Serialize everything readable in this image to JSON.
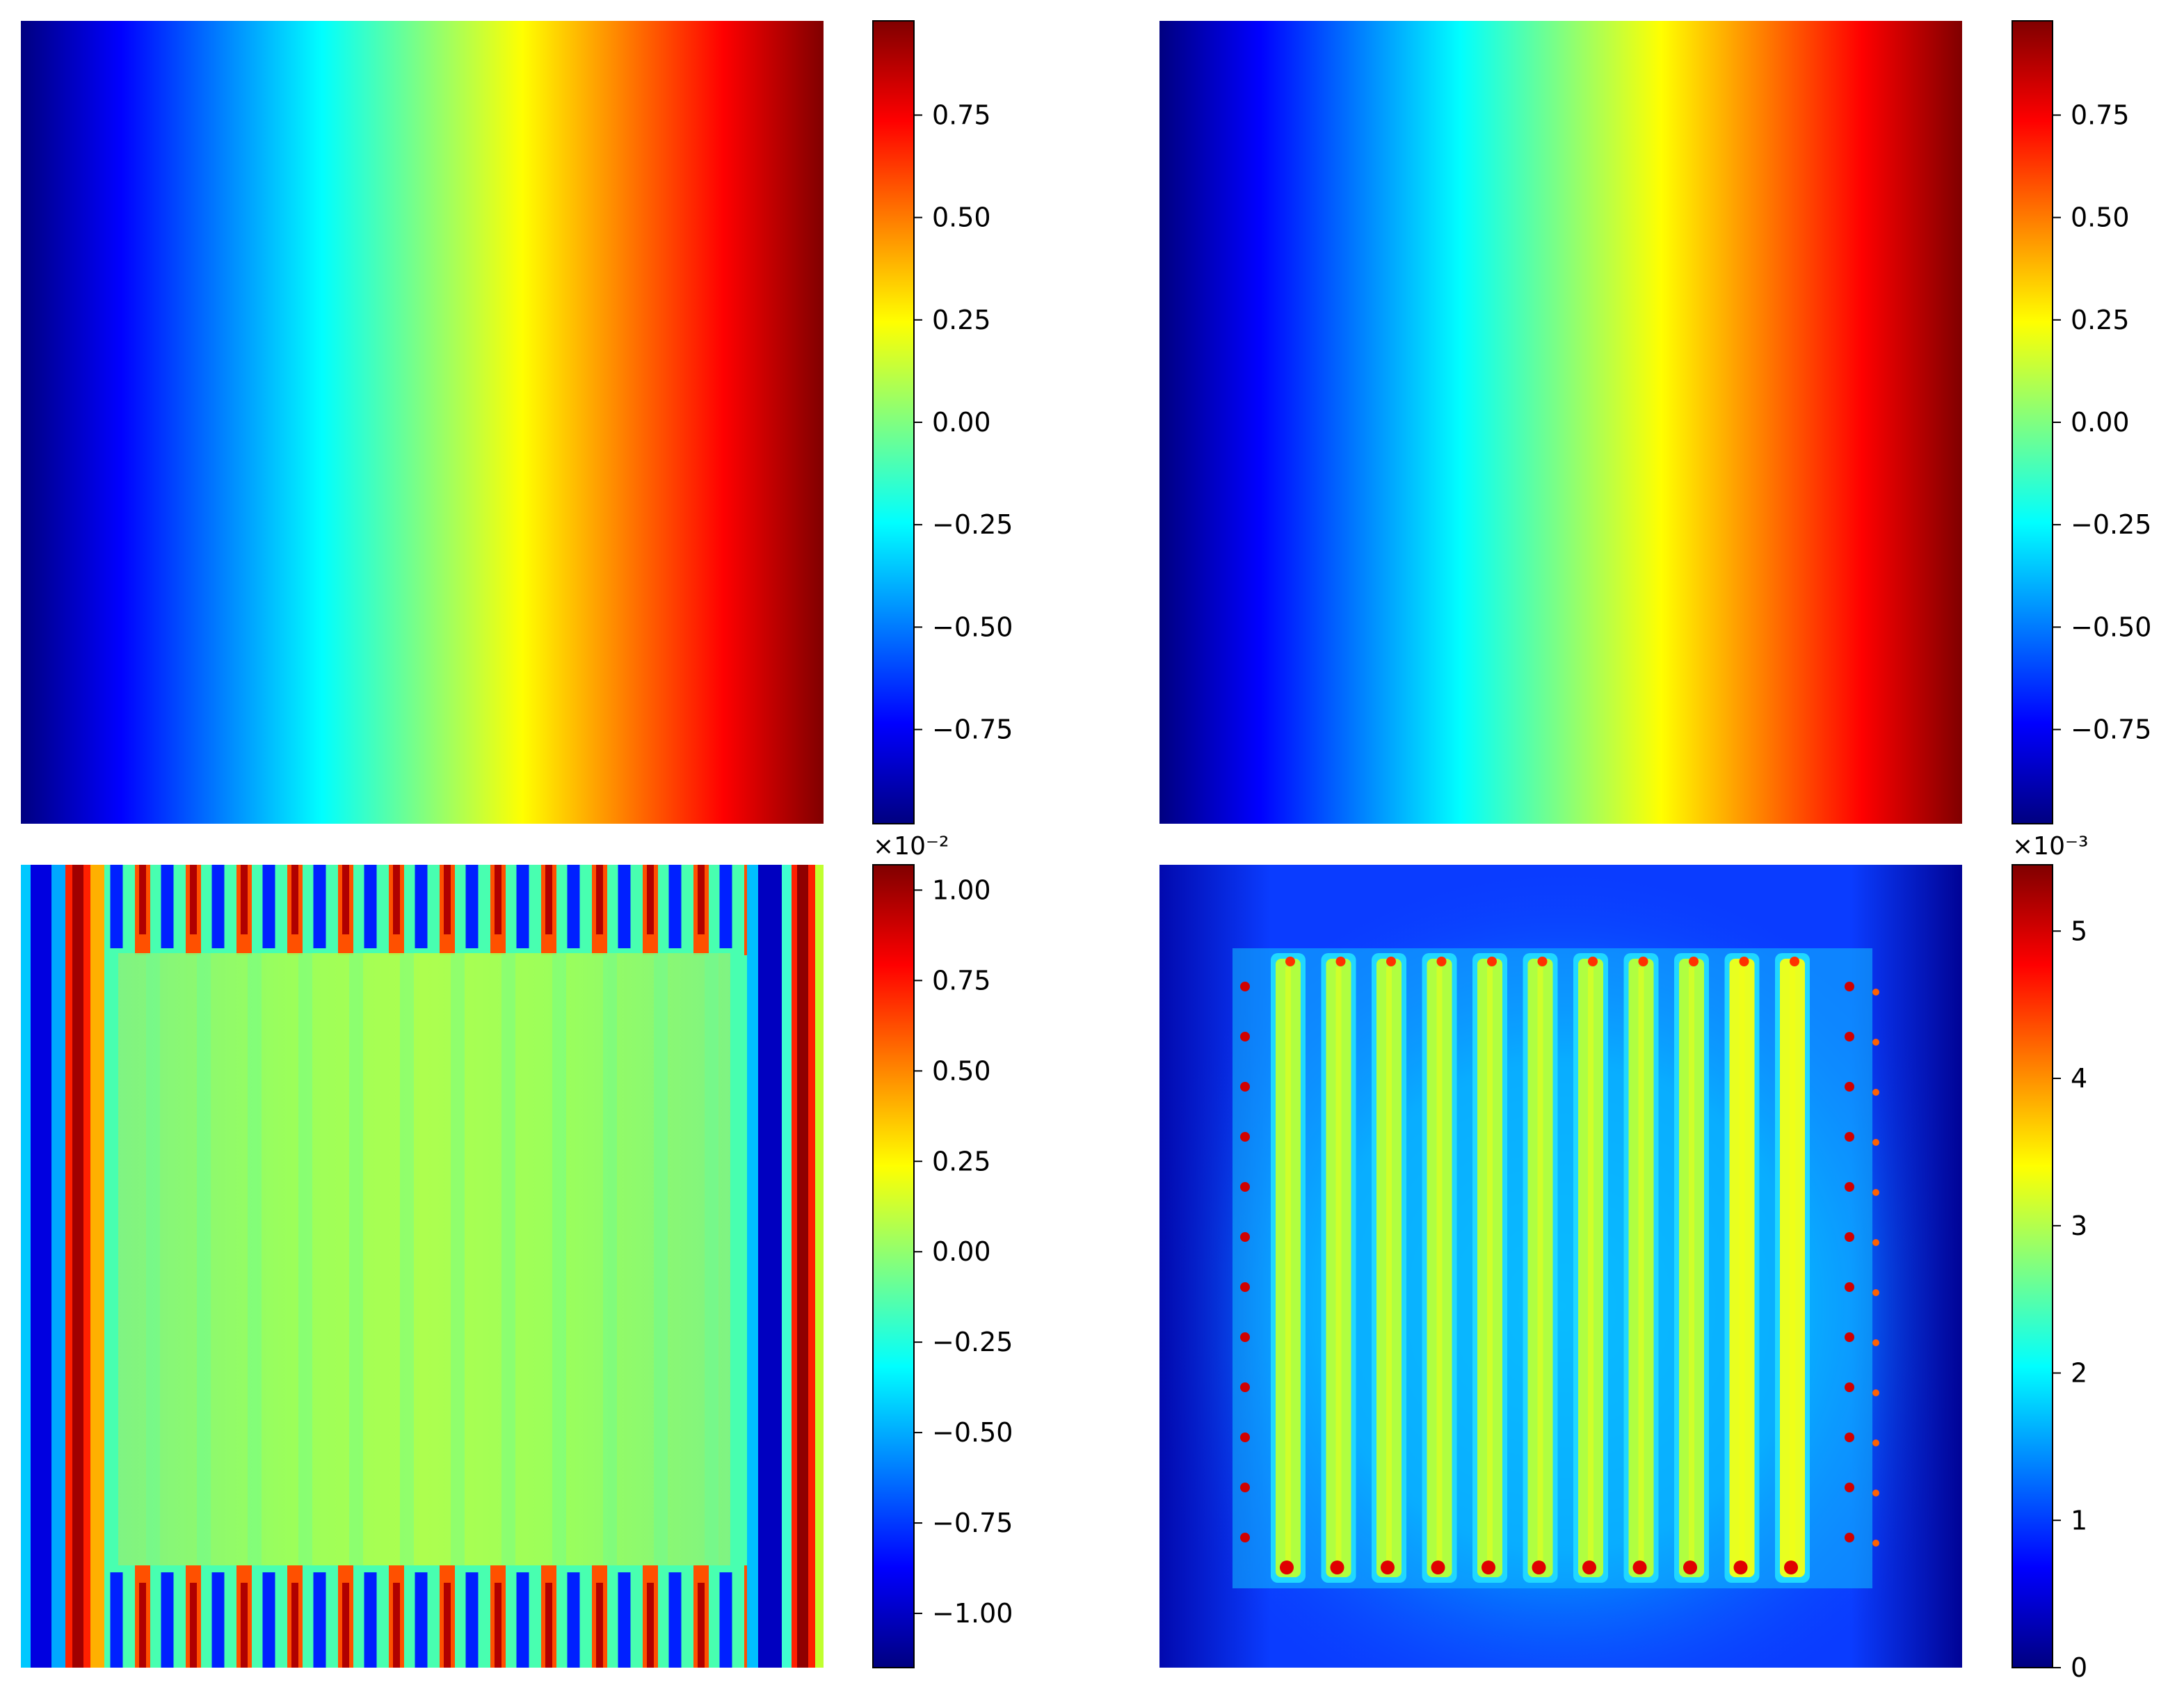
{
  "colormap": {
    "name": "jet",
    "stops": [
      "#000080",
      "#0000ff",
      "#0080ff",
      "#00ffff",
      "#80ff80",
      "#ffff00",
      "#ff8000",
      "#ff0000",
      "#800000"
    ]
  },
  "chart_data": [
    {
      "type": "heatmap",
      "title": "",
      "panel": "top-left",
      "field": "linear ramp along x",
      "x_range": [
        -1,
        1
      ],
      "value_range": [
        -1,
        1
      ],
      "colorbar": {
        "vmin": -0.98,
        "vmax": 0.98,
        "ticks": [
          0.75,
          0.5,
          0.25,
          0.0,
          -0.25,
          -0.5,
          -0.75
        ],
        "tick_labels": [
          "0.75",
          "0.50",
          "0.25",
          "0.00",
          "−0.25",
          "−0.50",
          "−0.75"
        ],
        "offset_text": ""
      }
    },
    {
      "type": "heatmap",
      "title": "",
      "panel": "top-right",
      "field": "linear ramp along x",
      "x_range": [
        -1,
        1
      ],
      "value_range": [
        -1,
        1
      ],
      "colorbar": {
        "vmin": -0.98,
        "vmax": 0.98,
        "ticks": [
          0.75,
          0.5,
          0.25,
          0.0,
          -0.25,
          -0.5,
          -0.75
        ],
        "tick_labels": [
          "0.75",
          "0.50",
          "0.25",
          "0.00",
          "−0.25",
          "−0.50",
          "−0.75"
        ],
        "offset_text": ""
      }
    },
    {
      "type": "heatmap",
      "title": "",
      "panel": "bottom-left",
      "field": "periodic stripe pattern with flatter central square",
      "colorbar": {
        "vmin": -1.15,
        "vmax": 1.07,
        "ticks": [
          1.0,
          0.75,
          0.5,
          0.25,
          0.0,
          -0.25,
          -0.5,
          -0.75,
          -1.0
        ],
        "tick_labels": [
          "1.00",
          "0.75",
          "0.50",
          "0.25",
          "0.00",
          "−0.25",
          "−0.50",
          "−0.75",
          "−1.00"
        ],
        "offset_text": "×10⁻²"
      }
    },
    {
      "type": "heatmap",
      "title": "",
      "panel": "bottom-right",
      "field": "vertical stripe array with red hot spots on blue background",
      "stripe_count": 11,
      "colorbar": {
        "vmin": 0,
        "vmax": 5.45,
        "ticks": [
          5,
          4,
          3,
          2,
          1,
          0
        ],
        "tick_labels": [
          "5",
          "4",
          "3",
          "2",
          "1",
          "0"
        ],
        "offset_text": "×10⁻³"
      }
    }
  ]
}
